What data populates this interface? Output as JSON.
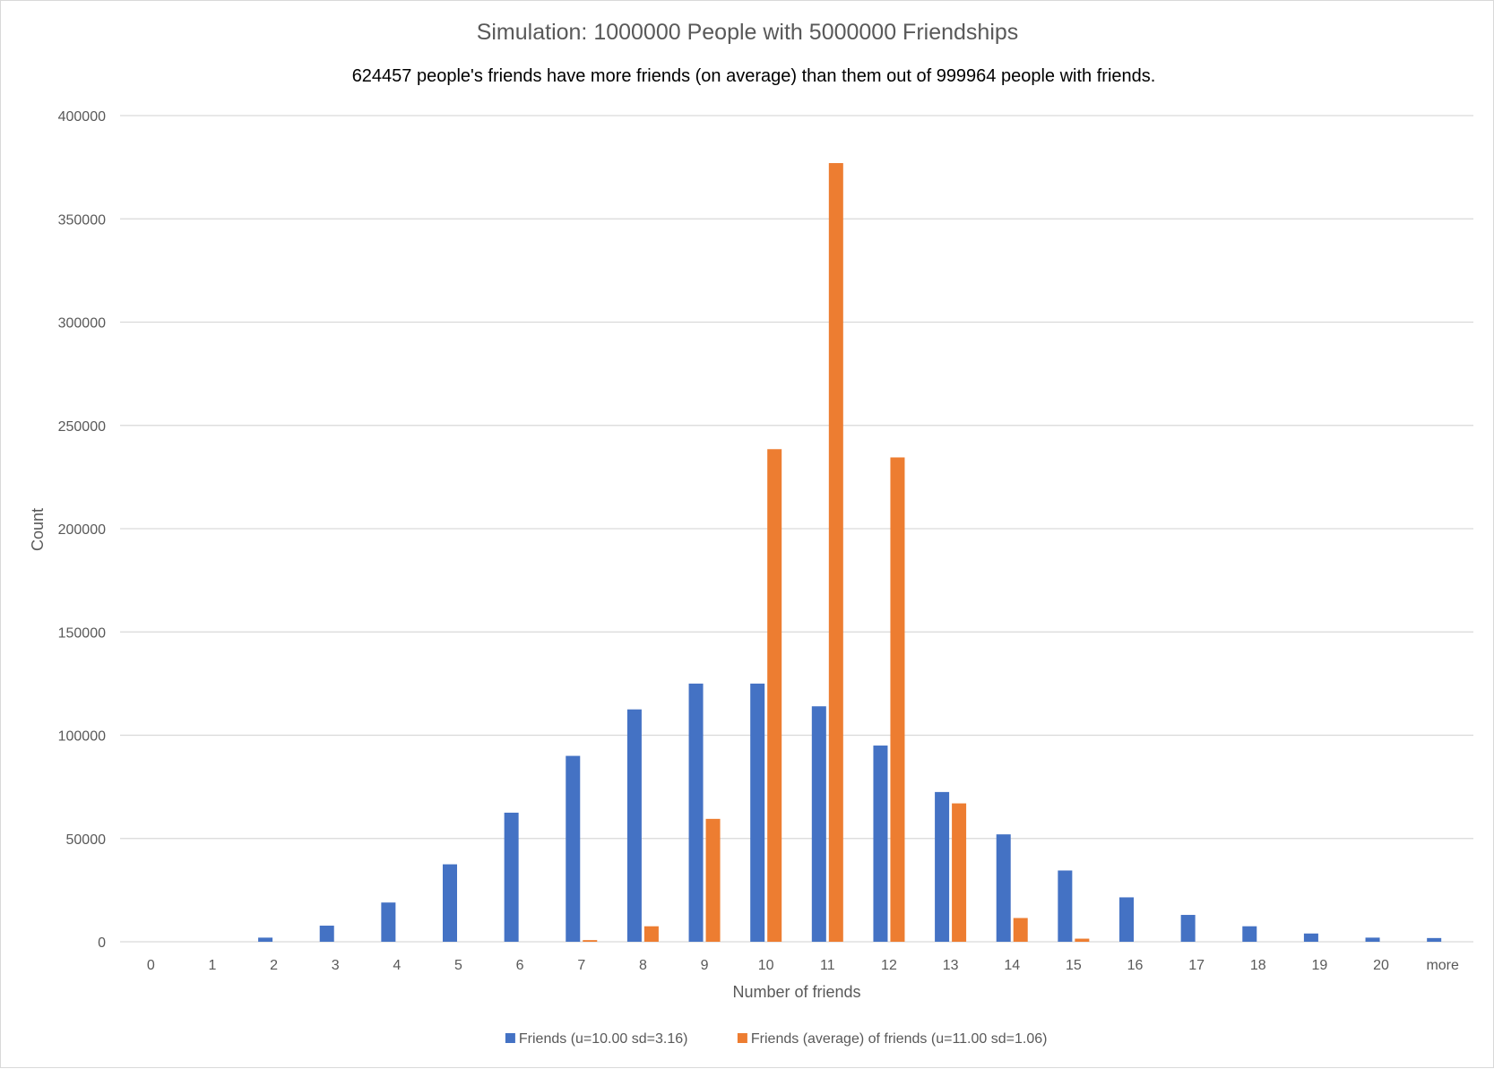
{
  "chart_data": {
    "type": "bar",
    "title": "Simulation: 1000000 People with 5000000 Friendships",
    "subtitle": "624457 people's friends have more friends (on average) than them out of 999964 people with friends.",
    "xlabel": "Number of friends",
    "ylabel": "Count",
    "ylim": [
      0,
      400000
    ],
    "yticks": [
      0,
      50000,
      100000,
      150000,
      200000,
      250000,
      300000,
      350000,
      400000
    ],
    "grid": true,
    "legend": "bottom",
    "categories": [
      "0",
      "1",
      "2",
      "3",
      "4",
      "5",
      "6",
      "7",
      "8",
      "9",
      "10",
      "11",
      "12",
      "13",
      "14",
      "15",
      "16",
      "17",
      "18",
      "19",
      "20",
      "more"
    ],
    "series": [
      {
        "name": "Friends (u=10.00 sd=3.16)",
        "color": "#4472c4",
        "values": [
          0,
          0,
          2000,
          7800,
          19000,
          37500,
          62500,
          90000,
          112500,
          125000,
          125000,
          114000,
          95000,
          72500,
          52000,
          34500,
          21500,
          13000,
          7500,
          4000,
          2000,
          1800
        ]
      },
      {
        "name": "Friends (average) of friends (u=11.00 sd=1.06)",
        "color": "#ed7d31",
        "values": [
          0,
          0,
          0,
          0,
          0,
          0,
          0,
          800,
          7500,
          59500,
          238500,
          377000,
          234500,
          67000,
          11500,
          1500,
          0,
          0,
          0,
          0,
          0,
          0
        ]
      }
    ]
  }
}
